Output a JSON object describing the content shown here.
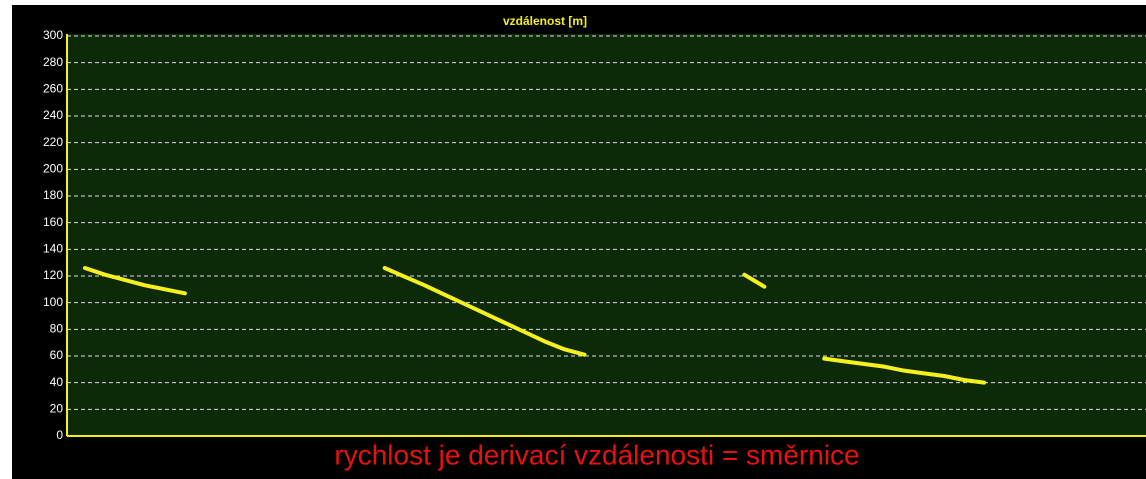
{
  "chart_data": {
    "type": "line",
    "title": "vzdálenost [m]",
    "annotation": "rychlost je derivací vzdálenosti = směrnice",
    "series": [
      {
        "name": null,
        "color": "#f5f01e",
        "values": [
          null,
          126,
          121,
          117,
          113,
          110,
          107,
          null,
          null,
          null,
          null,
          null,
          null,
          null,
          null,
          null,
          126,
          119.5,
          113,
          106,
          99,
          92,
          85,
          78,
          71,
          65,
          61,
          null,
          null,
          null,
          null,
          null,
          null,
          null,
          121,
          112,
          null,
          null,
          58,
          56,
          54,
          52,
          49,
          47,
          45,
          42,
          40,
          null,
          null,
          null,
          null,
          null,
          null,
          null
        ]
      }
    ],
    "ylim": [
      0,
      300
    ],
    "yticks": [
      0,
      20,
      40,
      60,
      80,
      100,
      120,
      140,
      160,
      180,
      200,
      220,
      240,
      260,
      280,
      300
    ],
    "grid": true
  }
}
